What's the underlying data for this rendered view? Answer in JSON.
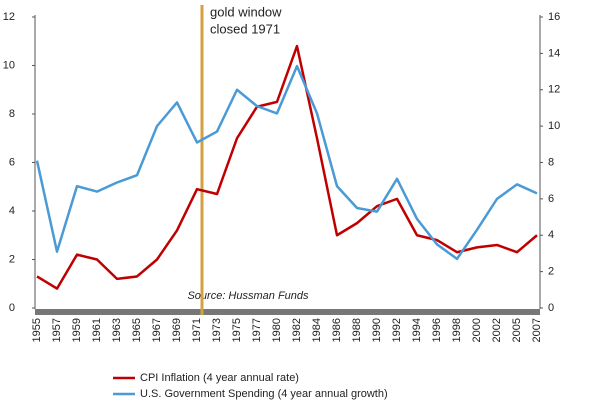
{
  "chart_data": {
    "type": "line",
    "categories": [
      "1955",
      "1957",
      "1959",
      "1961",
      "1963",
      "1965",
      "1967",
      "1969",
      "1971",
      "1973",
      "1975",
      "1977",
      "1980",
      "1982",
      "1984",
      "1986",
      "1988",
      "1990",
      "1992",
      "1994",
      "1996",
      "1998",
      "2000",
      "2002",
      "2005",
      "2007"
    ],
    "series": [
      {
        "name": "CPI Inflation  (4 year annual rate)",
        "color": "#c00000",
        "values": [
          1.3,
          0.8,
          2.2,
          2.0,
          1.2,
          1.3,
          2.0,
          3.2,
          4.9,
          4.7,
          7.0,
          8.3,
          8.5,
          10.8,
          7.0,
          3.0,
          3.5,
          4.2,
          4.5,
          3.0,
          2.8,
          2.3,
          2.5,
          2.6,
          2.3,
          3.0
        ]
      },
      {
        "name": "U.S. Government Spending (4 year annual growth)",
        "color": "#4a9ad6",
        "axis": "y2",
        "values": [
          8.1,
          3.1,
          6.7,
          6.4,
          6.9,
          7.3,
          10.0,
          11.3,
          9.1,
          9.7,
          12.0,
          11.1,
          10.7,
          13.3,
          10.7,
          6.7,
          5.5,
          5.3,
          7.1,
          4.9,
          3.5,
          2.7,
          4.3,
          6.0,
          6.8,
          6.3
        ]
      }
    ],
    "ylim": [
      0,
      12
    ],
    "yticks": [
      0,
      2,
      4,
      6,
      8,
      10,
      12
    ],
    "y2lim": [
      0,
      16
    ],
    "y2ticks": [
      0,
      2,
      4,
      6,
      8,
      10,
      12,
      14,
      16
    ],
    "annotations": [
      {
        "lines": [
          "gold window",
          "closed 1971"
        ],
        "category": "1971",
        "color": "#d4a040"
      }
    ],
    "source": "Source: Hussman Funds"
  }
}
